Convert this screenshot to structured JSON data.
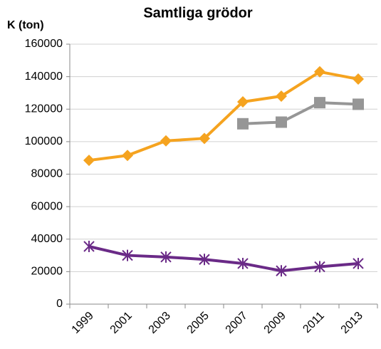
{
  "chart_data": {
    "type": "line",
    "title": "Samtliga grödor",
    "y_label": "K (ton)",
    "categories": [
      "1999",
      "2001",
      "2003",
      "2005",
      "2007",
      "2009",
      "2011",
      "2013"
    ],
    "series": [
      {
        "color": "#f5a31f",
        "marker": "diamond",
        "values": [
          88500,
          91500,
          100500,
          102000,
          124500,
          128000,
          143000,
          138500
        ]
      },
      {
        "color": "#969696",
        "marker": "square",
        "values": [
          null,
          null,
          null,
          null,
          111000,
          112000,
          124000,
          123000
        ]
      },
      {
        "color": "#6a2a87",
        "marker": "asterisk",
        "values": [
          35500,
          30000,
          29000,
          27500,
          25000,
          20500,
          23000,
          25000
        ]
      }
    ],
    "ylim": [
      0,
      160000
    ],
    "yticks": [
      0,
      20000,
      40000,
      60000,
      80000,
      100000,
      120000,
      140000,
      160000
    ],
    "grid": true
  }
}
